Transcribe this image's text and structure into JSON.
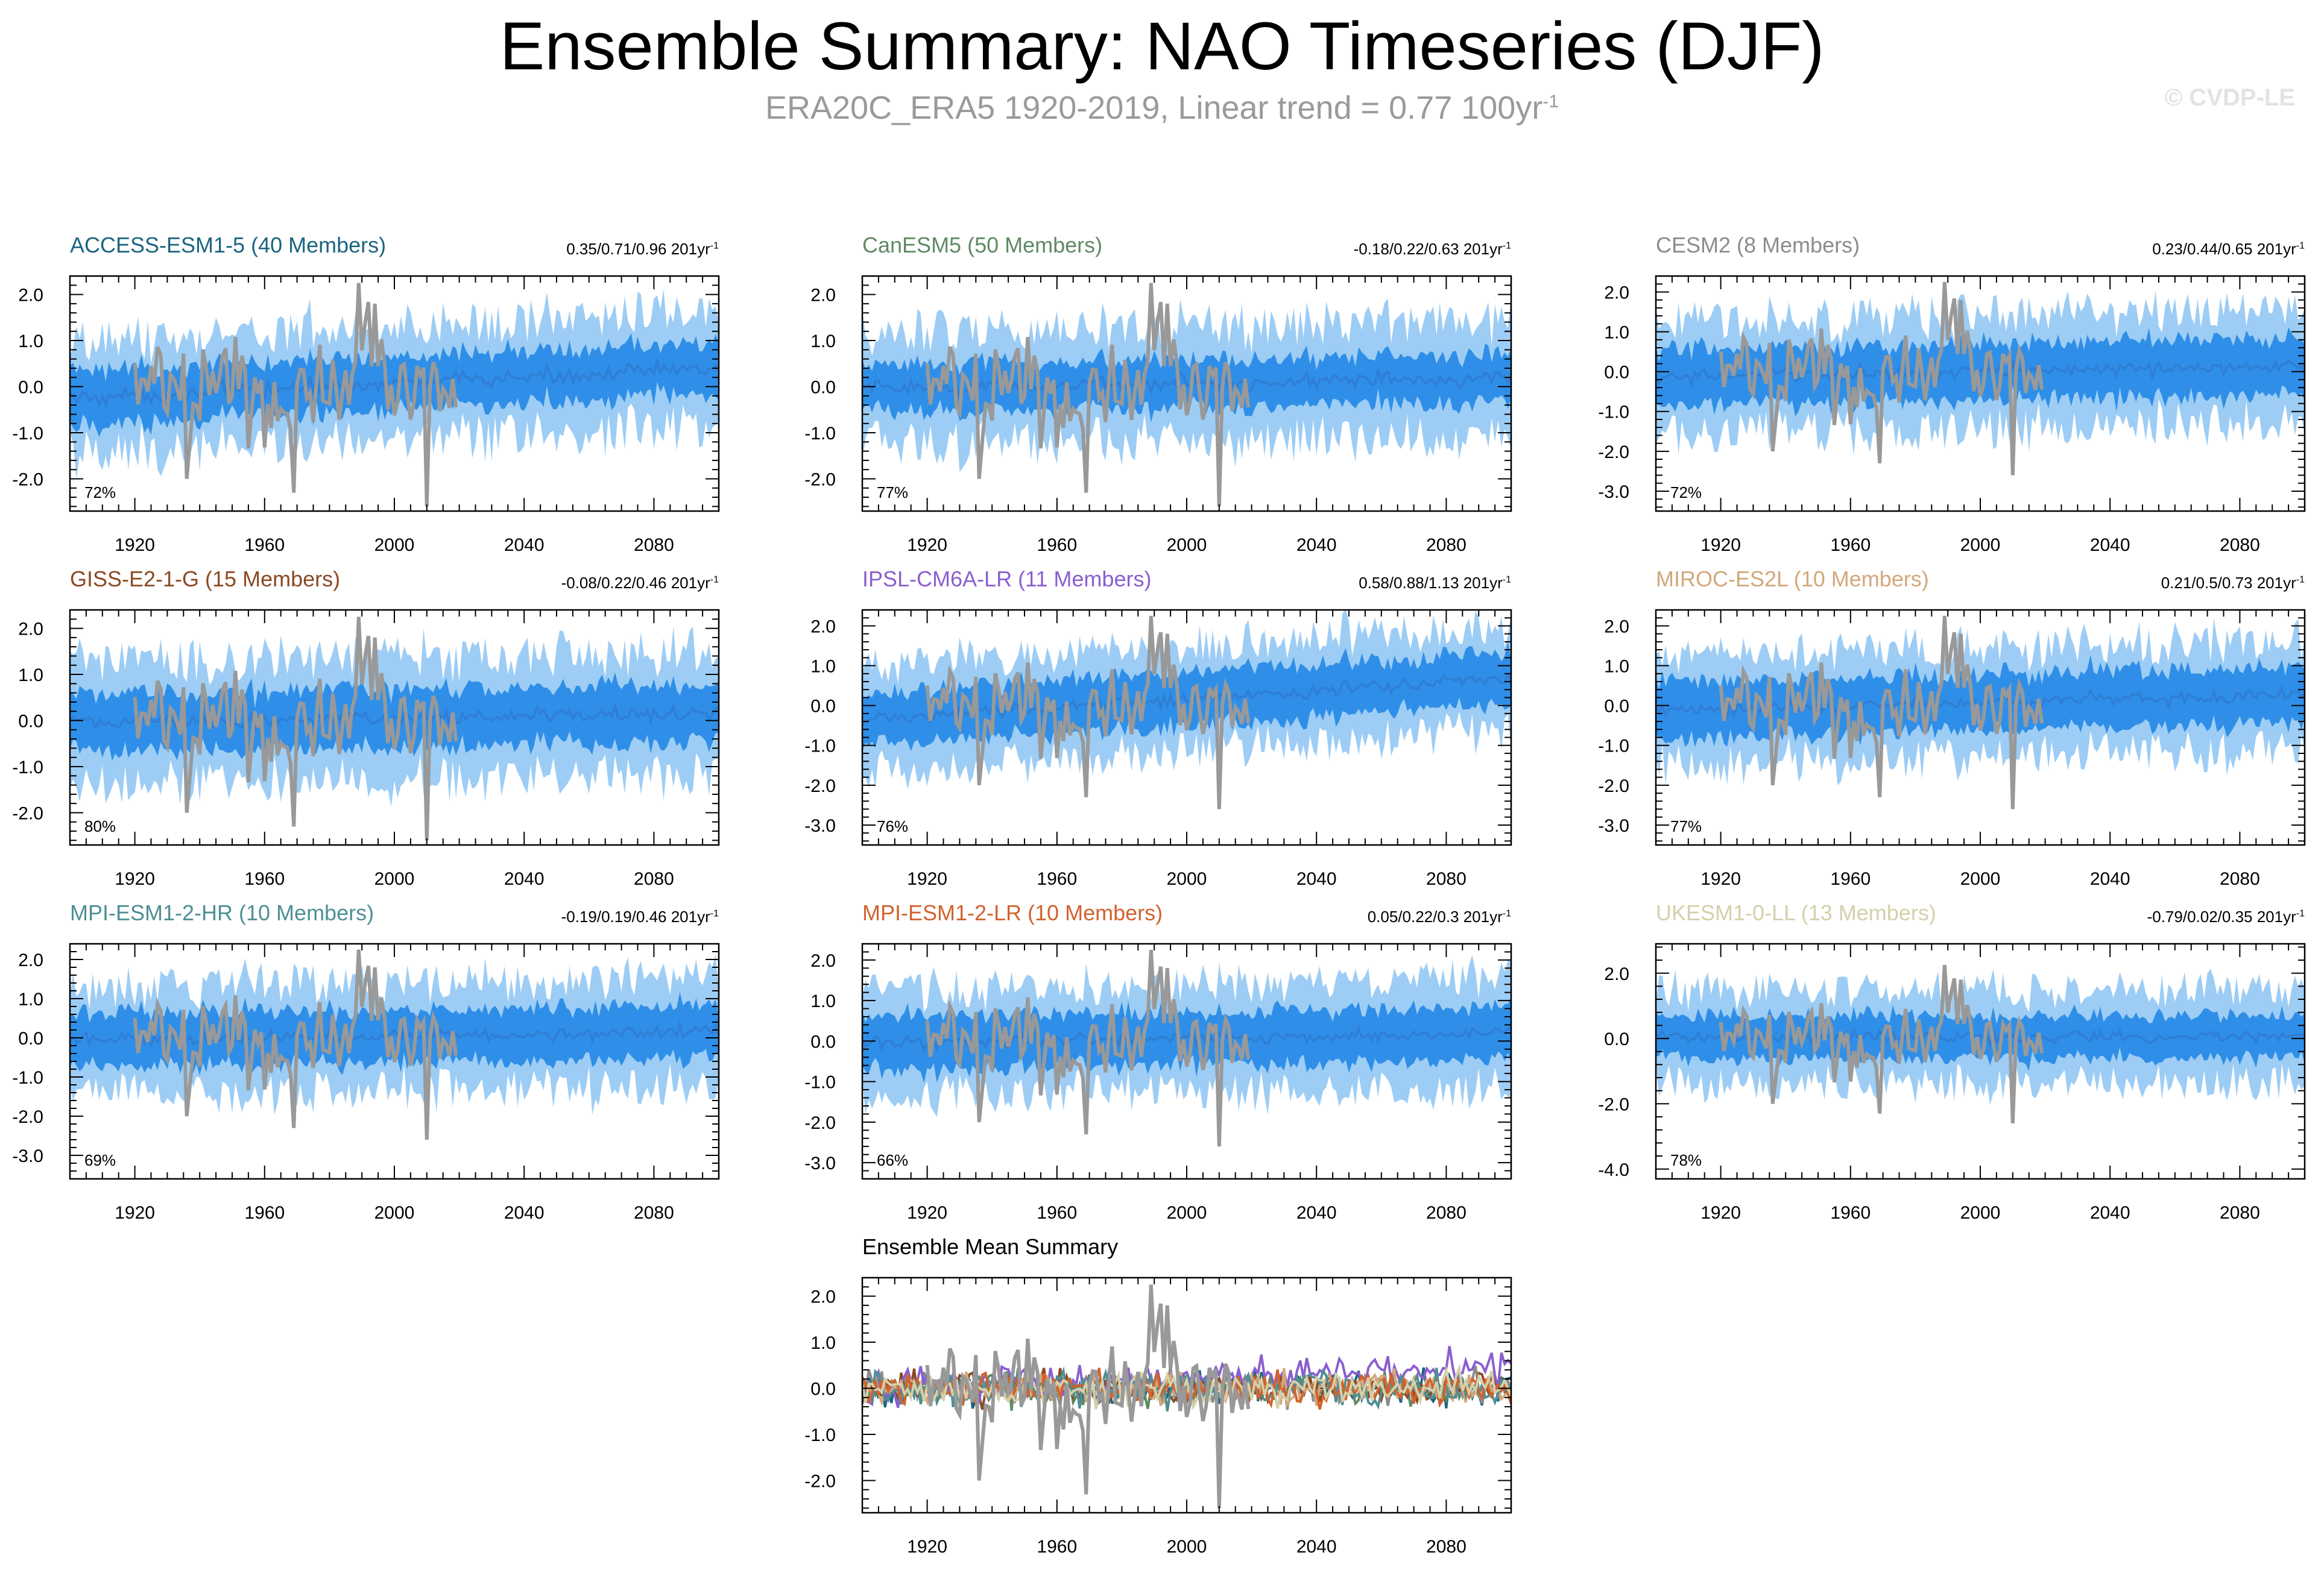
{
  "header": {
    "title": "Ensemble Summary: NAO Timeseries (DJF)",
    "subtitle": "ERA20C_ERA5 1920-2019, Linear trend = 0.77 100yr",
    "subtitle_unit_exp": "-1",
    "watermark": "© CVDP-LE"
  },
  "colors": {
    "observations": "#999999",
    "band_outer": "#9dcdf5",
    "band_inner": "#2f8fe8",
    "ensemble_mean": "#2f7fd5"
  },
  "chart_data": [
    {
      "type": "line",
      "title": "ACCESS-ESM1-5 (40 Members)",
      "title_color": "#1b6580",
      "trend": "0.35/0.71/0.96 201yr",
      "trend_exp": "-1",
      "percent": "72%",
      "xticks": [
        "1920",
        "1960",
        "2000",
        "2040",
        "2080"
      ],
      "yticks": [
        "2.0",
        "1.0",
        "0.0",
        "-1.0",
        "-2.0"
      ],
      "ylim": [
        -2.7,
        2.4
      ],
      "xlim": [
        1900,
        2100
      ],
      "series": [
        {
          "name": "ensemble mean",
          "trend_start": -0.25,
          "trend_end": 0.4
        },
        {
          "name": "inner spread",
          "halfwidth": 0.6
        },
        {
          "name": "outer spread",
          "halfwidth": 1.3
        },
        {
          "name": "ERA20C_ERA5 observations",
          "years": "1920-2019"
        }
      ]
    },
    {
      "type": "line",
      "title": "CanESM5 (50 Members)",
      "title_color": "#5e8a62",
      "trend": "-0.18/0.22/0.63 201yr",
      "trend_exp": "-1",
      "percent": "77%",
      "xticks": [
        "1920",
        "1960",
        "2000",
        "2040",
        "2080"
      ],
      "yticks": [
        "2.0",
        "1.0",
        "0.0",
        "-1.0",
        "-2.0"
      ],
      "ylim": [
        -2.7,
        2.4
      ],
      "xlim": [
        1900,
        2100
      ],
      "series": [
        {
          "name": "ensemble mean",
          "trend_start": -0.05,
          "trend_end": 0.2
        },
        {
          "name": "inner spread",
          "halfwidth": 0.55
        },
        {
          "name": "outer spread",
          "halfwidth": 1.3
        },
        {
          "name": "ERA20C_ERA5 observations",
          "years": "1920-2019"
        }
      ]
    },
    {
      "type": "line",
      "title": "CESM2 (8 Members)",
      "title_color": "#8c8c8c",
      "trend": "0.23/0.44/0.65 201yr",
      "trend_exp": "-1",
      "percent": "72%",
      "xticks": [
        "1920",
        "1960",
        "2000",
        "2040",
        "2080"
      ],
      "yticks": [
        "2.0",
        "1.0",
        "0.0",
        "-1.0",
        "-2.0",
        "-3.0"
      ],
      "ylim": [
        -3.5,
        2.4
      ],
      "xlim": [
        1900,
        2100
      ],
      "series": [
        {
          "name": "ensemble mean",
          "trend_start": -0.15,
          "trend_end": 0.15
        },
        {
          "name": "inner spread",
          "halfwidth": 0.75
        },
        {
          "name": "outer spread",
          "halfwidth": 1.5
        },
        {
          "name": "ERA20C_ERA5 observations",
          "years": "1920-2019"
        }
      ]
    },
    {
      "type": "line",
      "title": "GISS-E2-1-G (15 Members)",
      "title_color": "#8a4a22",
      "trend": "-0.08/0.22/0.46 201yr",
      "trend_exp": "-1",
      "percent": "80%",
      "xticks": [
        "1920",
        "1960",
        "2000",
        "2040",
        "2080"
      ],
      "yticks": [
        "2.0",
        "1.0",
        "0.0",
        "-1.0",
        "-2.0"
      ],
      "ylim": [
        -2.7,
        2.4
      ],
      "xlim": [
        1900,
        2100
      ],
      "series": [
        {
          "name": "ensemble mean",
          "trend_start": -0.05,
          "trend_end": 0.15
        },
        {
          "name": "inner spread",
          "halfwidth": 0.65
        },
        {
          "name": "outer spread",
          "halfwidth": 1.4
        },
        {
          "name": "ERA20C_ERA5 observations",
          "years": "1920-2019"
        }
      ]
    },
    {
      "type": "line",
      "title": "IPSL-CM6A-LR (11 Members)",
      "title_color": "#8a5fcf",
      "trend": "0.58/0.88/1.13 201yr",
      "trend_exp": "-1",
      "percent": "76%",
      "xticks": [
        "1920",
        "1960",
        "2000",
        "2040",
        "2080"
      ],
      "yticks": [
        "2.0",
        "1.0",
        "0.0",
        "-1.0",
        "-2.0",
        "-3.0"
      ],
      "ylim": [
        -3.5,
        2.4
      ],
      "xlim": [
        1900,
        2100
      ],
      "series": [
        {
          "name": "ensemble mean",
          "trend_start": -0.35,
          "trend_end": 0.7
        },
        {
          "name": "inner spread",
          "halfwidth": 0.7
        },
        {
          "name": "outer spread",
          "halfwidth": 1.4
        },
        {
          "name": "ERA20C_ERA5 observations",
          "years": "1920-2019"
        }
      ]
    },
    {
      "type": "line",
      "title": "MIROC-ES2L (10 Members)",
      "title_color": "#d2a87c",
      "trend": "0.21/0.5/0.73 201yr",
      "trend_exp": "-1",
      "percent": "77%",
      "xticks": [
        "1920",
        "1960",
        "2000",
        "2040",
        "2080"
      ],
      "yticks": [
        "2.0",
        "1.0",
        "0.0",
        "-1.0",
        "-2.0",
        "-3.0"
      ],
      "ylim": [
        -3.5,
        2.4
      ],
      "xlim": [
        1900,
        2100
      ],
      "series": [
        {
          "name": "ensemble mean",
          "trend_start": -0.15,
          "trend_end": 0.3
        },
        {
          "name": "inner spread",
          "halfwidth": 0.75
        },
        {
          "name": "outer spread",
          "halfwidth": 1.45
        },
        {
          "name": "ERA20C_ERA5 observations",
          "years": "1920-2019"
        }
      ]
    },
    {
      "type": "line",
      "title": "MPI-ESM1-2-HR (10 Members)",
      "title_color": "#4d8f94",
      "trend": "-0.19/0.19/0.46 201yr",
      "trend_exp": "-1",
      "percent": "69%",
      "xticks": [
        "1920",
        "1960",
        "2000",
        "2040",
        "2080"
      ],
      "yticks": [
        "2.0",
        "1.0",
        "0.0",
        "-1.0",
        "-2.0",
        "-3.0"
      ],
      "ylim": [
        -3.6,
        2.4
      ],
      "xlim": [
        1900,
        2100
      ],
      "series": [
        {
          "name": "ensemble mean",
          "trend_start": -0.05,
          "trend_end": 0.15
        },
        {
          "name": "inner spread",
          "halfwidth": 0.7
        },
        {
          "name": "outer spread",
          "halfwidth": 1.45
        },
        {
          "name": "ERA20C_ERA5 observations",
          "years": "1920-2019"
        }
      ]
    },
    {
      "type": "line",
      "title": "MPI-ESM1-2-LR (10 Members)",
      "title_color": "#d2622d",
      "trend": "0.05/0.22/0.3 201yr",
      "trend_exp": "-1",
      "percent": "66%",
      "xticks": [
        "1920",
        "1960",
        "2000",
        "2040",
        "2080"
      ],
      "yticks": [
        "2.0",
        "1.0",
        "0.0",
        "-1.0",
        "-2.0",
        "-3.0"
      ],
      "ylim": [
        -3.4,
        2.4
      ],
      "xlim": [
        1900,
        2100
      ],
      "series": [
        {
          "name": "ensemble mean",
          "trend_start": -0.05,
          "trend_end": 0.2
        },
        {
          "name": "inner spread",
          "halfwidth": 0.7
        },
        {
          "name": "outer spread",
          "halfwidth": 1.4
        },
        {
          "name": "ERA20C_ERA5 observations",
          "years": "1920-2019"
        }
      ]
    },
    {
      "type": "line",
      "title": "UKESM1-0-LL (13 Members)",
      "title_color": "#d4d0aa",
      "trend": "-0.79/0.02/0.35 201yr",
      "trend_exp": "-1",
      "percent": "78%",
      "xticks": [
        "1920",
        "1960",
        "2000",
        "2040",
        "2080"
      ],
      "yticks": [
        "2.0",
        "0.0",
        "-2.0",
        "-4.0"
      ],
      "ylim": [
        -4.3,
        2.9
      ],
      "xlim": [
        1900,
        2100
      ],
      "series": [
        {
          "name": "ensemble mean",
          "trend_start": 0.05,
          "trend_end": 0.05
        },
        {
          "name": "inner spread",
          "halfwidth": 0.7
        },
        {
          "name": "outer spread",
          "halfwidth": 1.5
        },
        {
          "name": "ERA20C_ERA5 observations",
          "years": "1920-2019"
        }
      ]
    },
    {
      "type": "line",
      "title": "Ensemble Mean Summary",
      "title_color": "#000000",
      "xticks": [
        "1920",
        "1960",
        "2000",
        "2040",
        "2080"
      ],
      "yticks": [
        "2.0",
        "1.0",
        "0.0",
        "-1.0",
        "-2.0"
      ],
      "ylim": [
        -2.7,
        2.4
      ],
      "xlim": [
        1900,
        2100
      ],
      "series": [
        {
          "name": "ACCESS-ESM1-5",
          "color": "#1b6580"
        },
        {
          "name": "CanESM5",
          "color": "#5e8a62"
        },
        {
          "name": "CESM2",
          "color": "#8c8c8c"
        },
        {
          "name": "GISS-E2-1-G",
          "color": "#8a4a22"
        },
        {
          "name": "IPSL-CM6A-LR",
          "color": "#8a5fcf"
        },
        {
          "name": "MIROC-ES2L",
          "color": "#d2a87c"
        },
        {
          "name": "MPI-ESM1-2-HR",
          "color": "#4d8f94"
        },
        {
          "name": "MPI-ESM1-2-LR",
          "color": "#d2622d"
        },
        {
          "name": "UKESM1-0-LL",
          "color": "#d4d0aa"
        },
        {
          "name": "ERA20C_ERA5 observations",
          "color": "#999999"
        }
      ]
    }
  ]
}
